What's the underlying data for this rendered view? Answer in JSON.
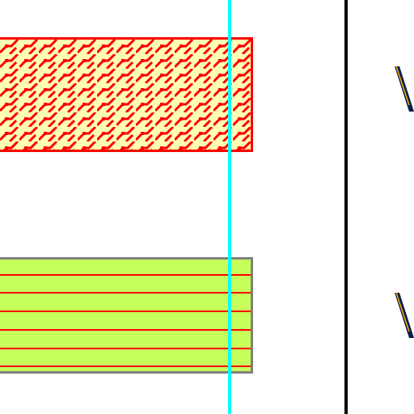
{
  "colors": {
    "background": "#ffffff",
    "top_fill": "#ffffb4",
    "top_pattern": "#ff0000",
    "top_border": "#ff0000",
    "bottom_fill": "#c6ff5c",
    "bottom_lines": "#ff0000",
    "bottom_border": "#808080",
    "cursor_line": "#00ffff",
    "divider": "#000000",
    "glyph": "#0a1f4a"
  },
  "swatches": [
    {
      "id": "top",
      "pattern": "dense-brick-hatch"
    },
    {
      "id": "bottom",
      "pattern": "horizontal-lines"
    }
  ],
  "right_panel": {
    "glyph_top": "V",
    "glyph_bottom": "V"
  }
}
